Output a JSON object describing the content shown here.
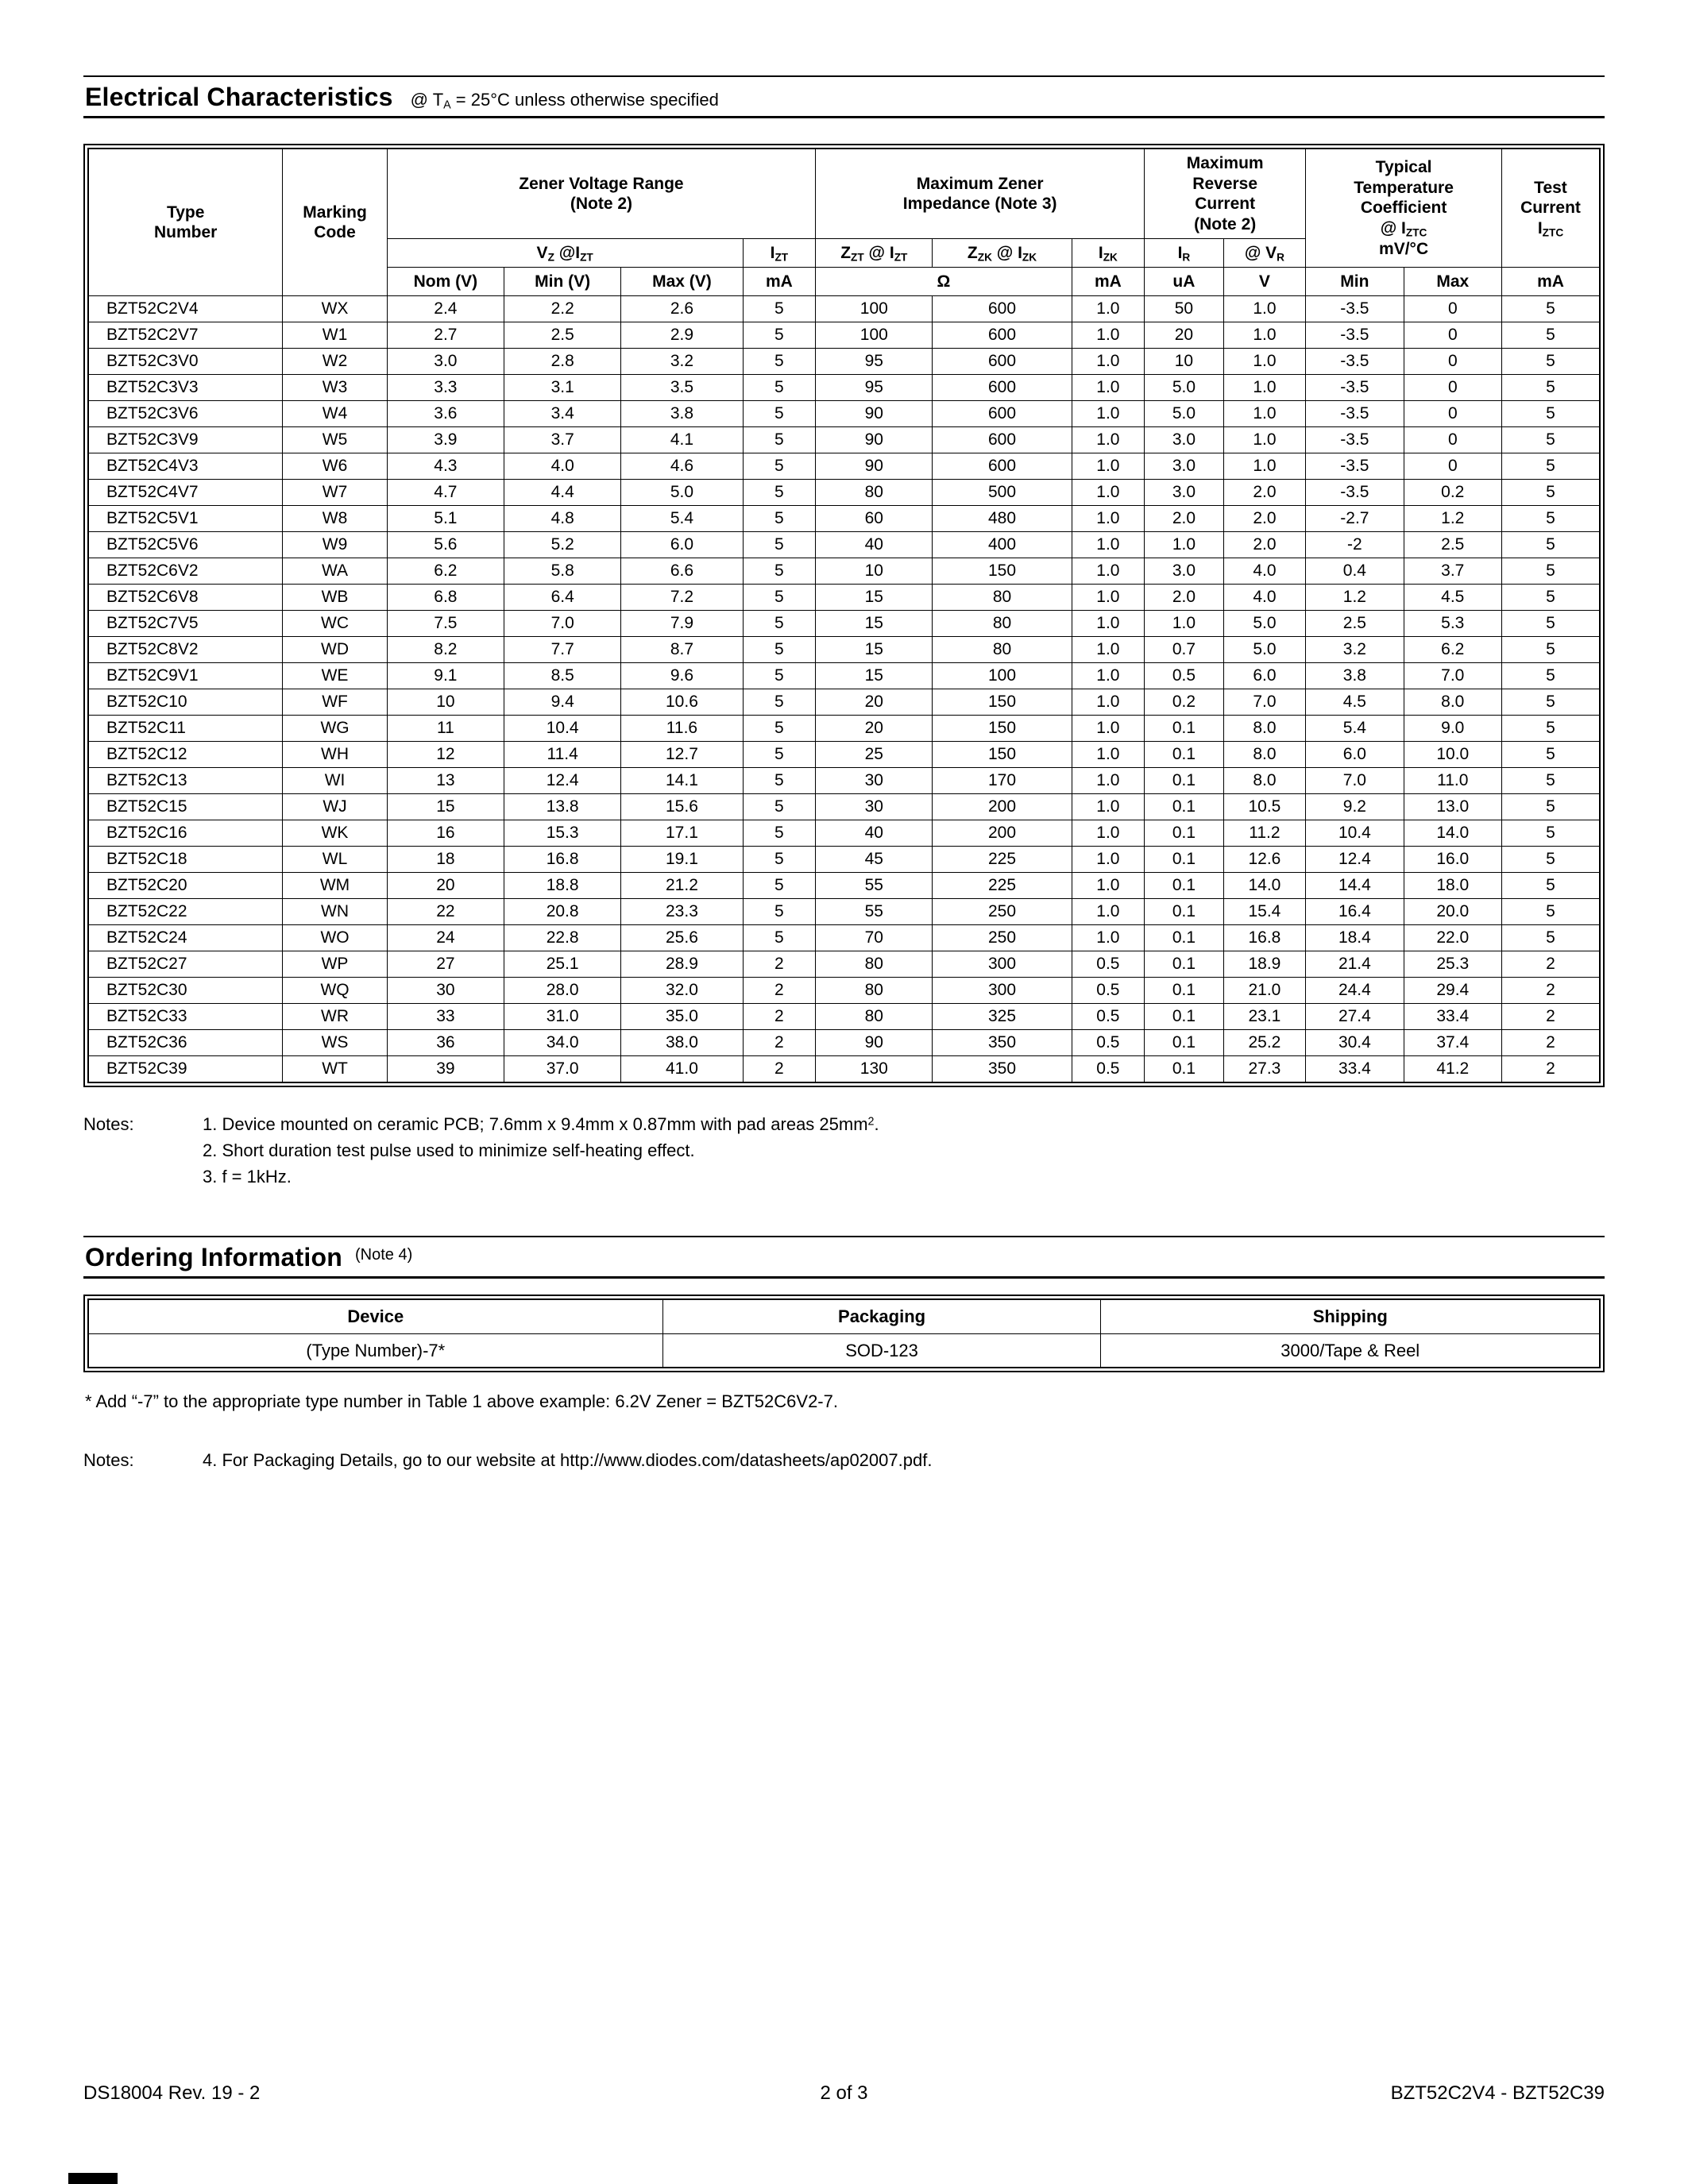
{
  "electrical": {
    "title": "Electrical Characteristics",
    "subtitle": "@ T_{A} = 25°C unless otherwise specified",
    "header": {
      "type_number": "Type\nNumber",
      "marking_code": "Marking\nCode",
      "zener_voltage_range": "Zener Voltage Range\n(Note 2)",
      "max_zener_impedance": "Maximum Zener\nImpedance (Note 3)",
      "max_reverse_current": "Maximum\nReverse\nCurrent\n(Note 2)",
      "temp_coefficient": "Typical\nTemperature\nCoefficient\n@ I_{ZTC}\nmV/°C",
      "test_current": "Test\nCurrent\nI_{ZTC}",
      "vz_at_izt": "V_{Z} @I_{ZT}",
      "izt": "I_{ZT}",
      "zzt_at_izt": "Z_{ZT} @ I_{ZT}",
      "zzk_at_izk": "Z_{ZK} @ I_{ZK}",
      "izk": "I_{ZK}",
      "ir": "I_{R}",
      "at_vr": "@ V_{R}",
      "units": {
        "nom": "Nom (V)",
        "min": "Min (V)",
        "max": "Max (V)",
        "izt_ma": "mA",
        "ohm": "Ω",
        "izk_ma": "mA",
        "ir_ua": "uA",
        "vr_v": "V",
        "tc_min": "Min",
        "tc_max": "Max",
        "iztc_ma": "mA"
      }
    },
    "col_keys": [
      "type-number",
      "marking-code",
      "vz-nom",
      "vz-min",
      "vz-max",
      "izt",
      "zzt",
      "zzk",
      "izk",
      "ir",
      "vr",
      "tc-min",
      "tc-max",
      "iztc"
    ],
    "rows": [
      [
        "BZT52C2V4",
        "WX",
        "2.4",
        "2.2",
        "2.6",
        "5",
        "100",
        "600",
        "1.0",
        "50",
        "1.0",
        "-3.5",
        "0",
        "5"
      ],
      [
        "BZT52C2V7",
        "W1",
        "2.7",
        "2.5",
        "2.9",
        "5",
        "100",
        "600",
        "1.0",
        "20",
        "1.0",
        "-3.5",
        "0",
        "5"
      ],
      [
        "BZT52C3V0",
        "W2",
        "3.0",
        "2.8",
        "3.2",
        "5",
        "95",
        "600",
        "1.0",
        "10",
        "1.0",
        "-3.5",
        "0",
        "5"
      ],
      [
        "BZT52C3V3",
        "W3",
        "3.3",
        "3.1",
        "3.5",
        "5",
        "95",
        "600",
        "1.0",
        "5.0",
        "1.0",
        "-3.5",
        "0",
        "5"
      ],
      [
        "BZT52C3V6",
        "W4",
        "3.6",
        "3.4",
        "3.8",
        "5",
        "90",
        "600",
        "1.0",
        "5.0",
        "1.0",
        "-3.5",
        "0",
        "5"
      ],
      [
        "BZT52C3V9",
        "W5",
        "3.9",
        "3.7",
        "4.1",
        "5",
        "90",
        "600",
        "1.0",
        "3.0",
        "1.0",
        "-3.5",
        "0",
        "5"
      ],
      [
        "BZT52C4V3",
        "W6",
        "4.3",
        "4.0",
        "4.6",
        "5",
        "90",
        "600",
        "1.0",
        "3.0",
        "1.0",
        "-3.5",
        "0",
        "5"
      ],
      [
        "BZT52C4V7",
        "W7",
        "4.7",
        "4.4",
        "5.0",
        "5",
        "80",
        "500",
        "1.0",
        "3.0",
        "2.0",
        "-3.5",
        "0.2",
        "5"
      ],
      [
        "BZT52C5V1",
        "W8",
        "5.1",
        "4.8",
        "5.4",
        "5",
        "60",
        "480",
        "1.0",
        "2.0",
        "2.0",
        "-2.7",
        "1.2",
        "5"
      ],
      [
        "BZT52C5V6",
        "W9",
        "5.6",
        "5.2",
        "6.0",
        "5",
        "40",
        "400",
        "1.0",
        "1.0",
        "2.0",
        "-2",
        "2.5",
        "5"
      ],
      [
        "BZT52C6V2",
        "WA",
        "6.2",
        "5.8",
        "6.6",
        "5",
        "10",
        "150",
        "1.0",
        "3.0",
        "4.0",
        "0.4",
        "3.7",
        "5"
      ],
      [
        "BZT52C6V8",
        "WB",
        "6.8",
        "6.4",
        "7.2",
        "5",
        "15",
        "80",
        "1.0",
        "2.0",
        "4.0",
        "1.2",
        "4.5",
        "5"
      ],
      [
        "BZT52C7V5",
        "WC",
        "7.5",
        "7.0",
        "7.9",
        "5",
        "15",
        "80",
        "1.0",
        "1.0",
        "5.0",
        "2.5",
        "5.3",
        "5"
      ],
      [
        "BZT52C8V2",
        "WD",
        "8.2",
        "7.7",
        "8.7",
        "5",
        "15",
        "80",
        "1.0",
        "0.7",
        "5.0",
        "3.2",
        "6.2",
        "5"
      ],
      [
        "BZT52C9V1",
        "WE",
        "9.1",
        "8.5",
        "9.6",
        "5",
        "15",
        "100",
        "1.0",
        "0.5",
        "6.0",
        "3.8",
        "7.0",
        "5"
      ],
      [
        "BZT52C10",
        "WF",
        "10",
        "9.4",
        "10.6",
        "5",
        "20",
        "150",
        "1.0",
        "0.2",
        "7.0",
        "4.5",
        "8.0",
        "5"
      ],
      [
        "BZT52C11",
        "WG",
        "11",
        "10.4",
        "11.6",
        "5",
        "20",
        "150",
        "1.0",
        "0.1",
        "8.0",
        "5.4",
        "9.0",
        "5"
      ],
      [
        "BZT52C12",
        "WH",
        "12",
        "11.4",
        "12.7",
        "5",
        "25",
        "150",
        "1.0",
        "0.1",
        "8.0",
        "6.0",
        "10.0",
        "5"
      ],
      [
        "BZT52C13",
        "WI",
        "13",
        "12.4",
        "14.1",
        "5",
        "30",
        "170",
        "1.0",
        "0.1",
        "8.0",
        "7.0",
        "11.0",
        "5"
      ],
      [
        "BZT52C15",
        "WJ",
        "15",
        "13.8",
        "15.6",
        "5",
        "30",
        "200",
        "1.0",
        "0.1",
        "10.5",
        "9.2",
        "13.0",
        "5"
      ],
      [
        "BZT52C16",
        "WK",
        "16",
        "15.3",
        "17.1",
        "5",
        "40",
        "200",
        "1.0",
        "0.1",
        "11.2",
        "10.4",
        "14.0",
        "5"
      ],
      [
        "BZT52C18",
        "WL",
        "18",
        "16.8",
        "19.1",
        "5",
        "45",
        "225",
        "1.0",
        "0.1",
        "12.6",
        "12.4",
        "16.0",
        "5"
      ],
      [
        "BZT52C20",
        "WM",
        "20",
        "18.8",
        "21.2",
        "5",
        "55",
        "225",
        "1.0",
        "0.1",
        "14.0",
        "14.4",
        "18.0",
        "5"
      ],
      [
        "BZT52C22",
        "WN",
        "22",
        "20.8",
        "23.3",
        "5",
        "55",
        "250",
        "1.0",
        "0.1",
        "15.4",
        "16.4",
        "20.0",
        "5"
      ],
      [
        "BZT52C24",
        "WO",
        "24",
        "22.8",
        "25.6",
        "5",
        "70",
        "250",
        "1.0",
        "0.1",
        "16.8",
        "18.4",
        "22.0",
        "5"
      ],
      [
        "BZT52C27",
        "WP",
        "27",
        "25.1",
        "28.9",
        "2",
        "80",
        "300",
        "0.5",
        "0.1",
        "18.9",
        "21.4",
        "25.3",
        "2"
      ],
      [
        "BZT52C30",
        "WQ",
        "30",
        "28.0",
        "32.0",
        "2",
        "80",
        "300",
        "0.5",
        "0.1",
        "21.0",
        "24.4",
        "29.4",
        "2"
      ],
      [
        "BZT52C33",
        "WR",
        "33",
        "31.0",
        "35.0",
        "2",
        "80",
        "325",
        "0.5",
        "0.1",
        "23.1",
        "27.4",
        "33.4",
        "2"
      ],
      [
        "BZT52C36",
        "WS",
        "36",
        "34.0",
        "38.0",
        "2",
        "90",
        "350",
        "0.5",
        "0.1",
        "25.2",
        "30.4",
        "37.4",
        "2"
      ],
      [
        "BZT52C39",
        "WT",
        "39",
        "37.0",
        "41.0",
        "2",
        "130",
        "350",
        "0.5",
        "0.1",
        "27.3",
        "33.4",
        "41.2",
        "2"
      ]
    ],
    "notes_label": "Notes:",
    "notes": [
      "1. Device mounted on ceramic PCB; 7.6mm x 9.4mm x 0.87mm with pad areas 25mm^{2}.",
      "2. Short duration test pulse used to minimize self-heating effect.",
      "3. f = 1kHz."
    ]
  },
  "ordering": {
    "title": "Ordering Information",
    "note_ref": "(Note 4)",
    "columns": [
      "Device",
      "Packaging",
      "Shipping"
    ],
    "row": [
      "(Type Number)-7*",
      "SOD-123",
      "3000/Tape & Reel"
    ],
    "footnote": "* Add “-7” to the appropriate type number in Table 1 above example: 6.2V Zener = BZT52C6V2-7.",
    "notes_label": "Notes:",
    "note4": "4.   For Packaging Details, go to our website at http://www.diodes.com/datasheets/ap02007.pdf."
  },
  "footer": {
    "left": "DS18004 Rev. 19 - 2",
    "center": "2 of 3",
    "right": "BZT52C2V4 - BZT52C39"
  }
}
